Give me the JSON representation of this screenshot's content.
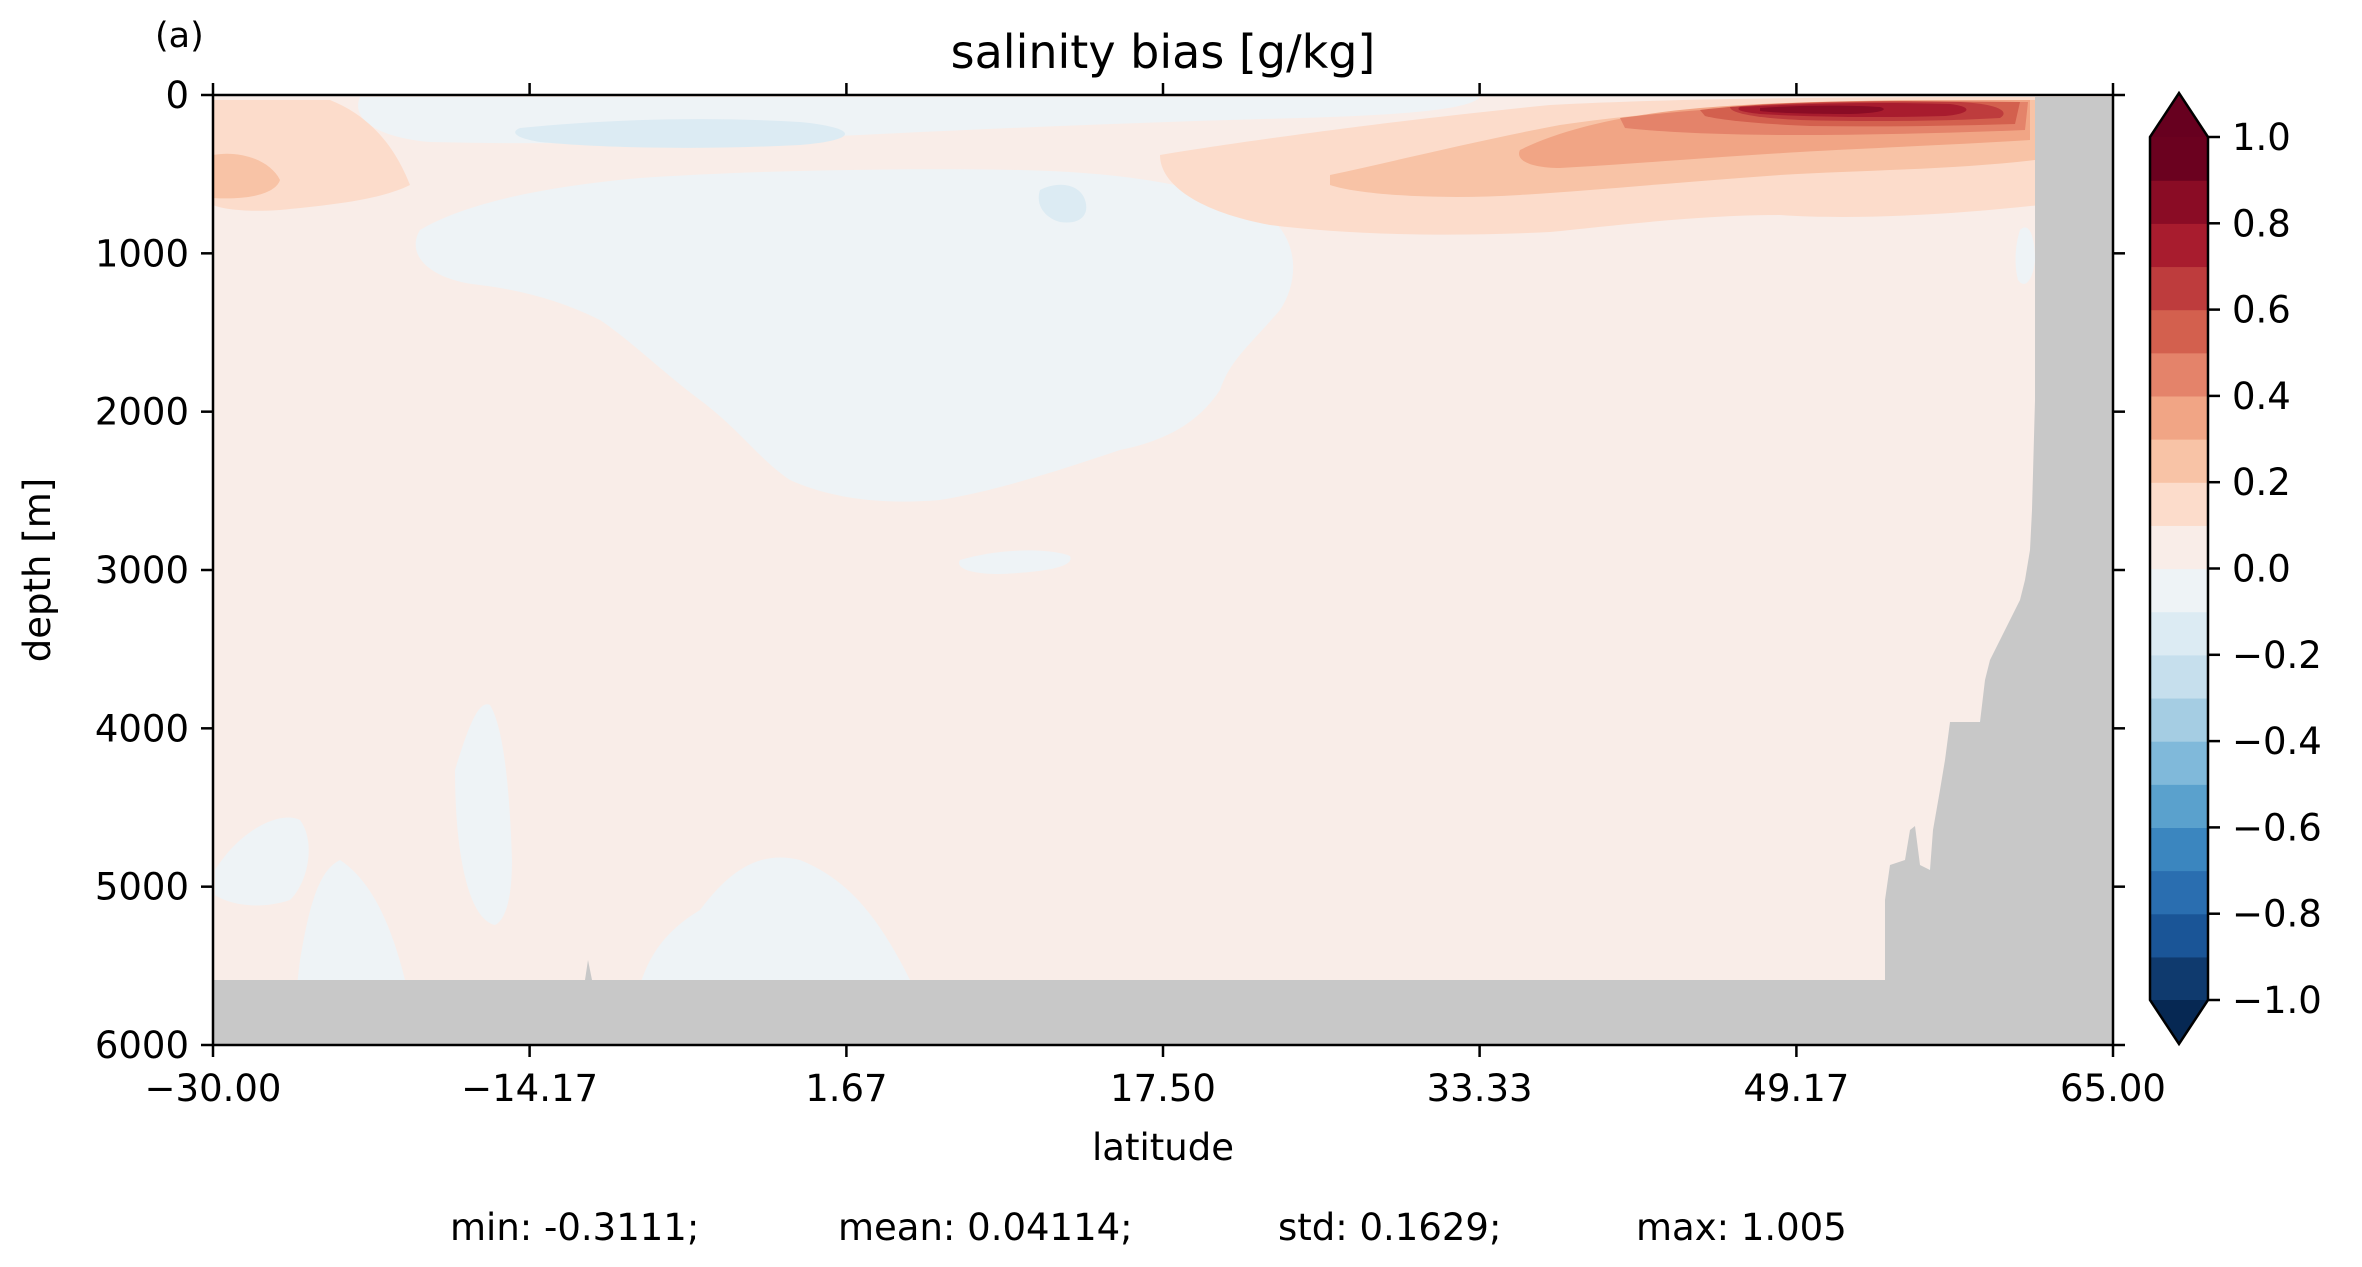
{
  "panel_label": "(a)",
  "chart_data": {
    "type": "heatmap",
    "title": "salinity bias [g/kg]",
    "xlabel": "latitude",
    "ylabel": "depth [m]",
    "xlim": [
      -30.0,
      65.0
    ],
    "ylim": [
      6000,
      0
    ],
    "y_inverted": true,
    "xticks": [
      "−30.00",
      "−14.17",
      "1.67",
      "17.50",
      "33.33",
      "49.17",
      "65.00"
    ],
    "xtick_values": [
      -30.0,
      -14.17,
      1.67,
      17.5,
      33.33,
      49.17,
      65.0
    ],
    "yticks": [
      "0",
      "1000",
      "2000",
      "3000",
      "4000",
      "5000",
      "6000"
    ],
    "ytick_values": [
      0,
      1000,
      2000,
      3000,
      4000,
      5000,
      6000
    ],
    "colormap": "RdBu_r",
    "land_color": "#c8c8c8",
    "colorbar": {
      "range": [
        -1.0,
        1.0
      ],
      "extend": "both",
      "levels": [
        -1.0,
        -0.9,
        -0.8,
        -0.7,
        -0.6,
        -0.5,
        -0.4,
        -0.3,
        -0.2,
        -0.1,
        0.0,
        0.1,
        0.2,
        0.3,
        0.4,
        0.5,
        0.6,
        0.7,
        0.8,
        0.9,
        1.0
      ],
      "tick_labels": [
        "1.0",
        "0.8",
        "0.6",
        "0.4",
        "0.2",
        "0.0",
        "−0.2",
        "−0.4",
        "−0.6",
        "−0.8",
        "−1.0"
      ],
      "tick_values": [
        1.0,
        0.8,
        0.6,
        0.4,
        0.2,
        0.0,
        -0.2,
        -0.4,
        -0.6,
        -0.8,
        -1.0
      ],
      "colors": [
        "#0f3a6e",
        "#1a5597",
        "#2a6eb0",
        "#3b86bf",
        "#5aa1cd",
        "#80b9da",
        "#a5cde3",
        "#c6dfed",
        "#dcebf3",
        "#eef3f6",
        "#f9ede8",
        "#fcdccb",
        "#f8c3a6",
        "#f1a585",
        "#e4836a",
        "#d3604e",
        "#be3c3d",
        "#a81c2e",
        "#8a0c25",
        "#6b011f"
      ],
      "under_color": "#062853",
      "over_color": "#67001f"
    },
    "stats": {
      "min": "min: -0.3111;",
      "mean": "mean: 0.04114;",
      "std": "std: 0.1629;",
      "max": "max: 1.005"
    }
  }
}
